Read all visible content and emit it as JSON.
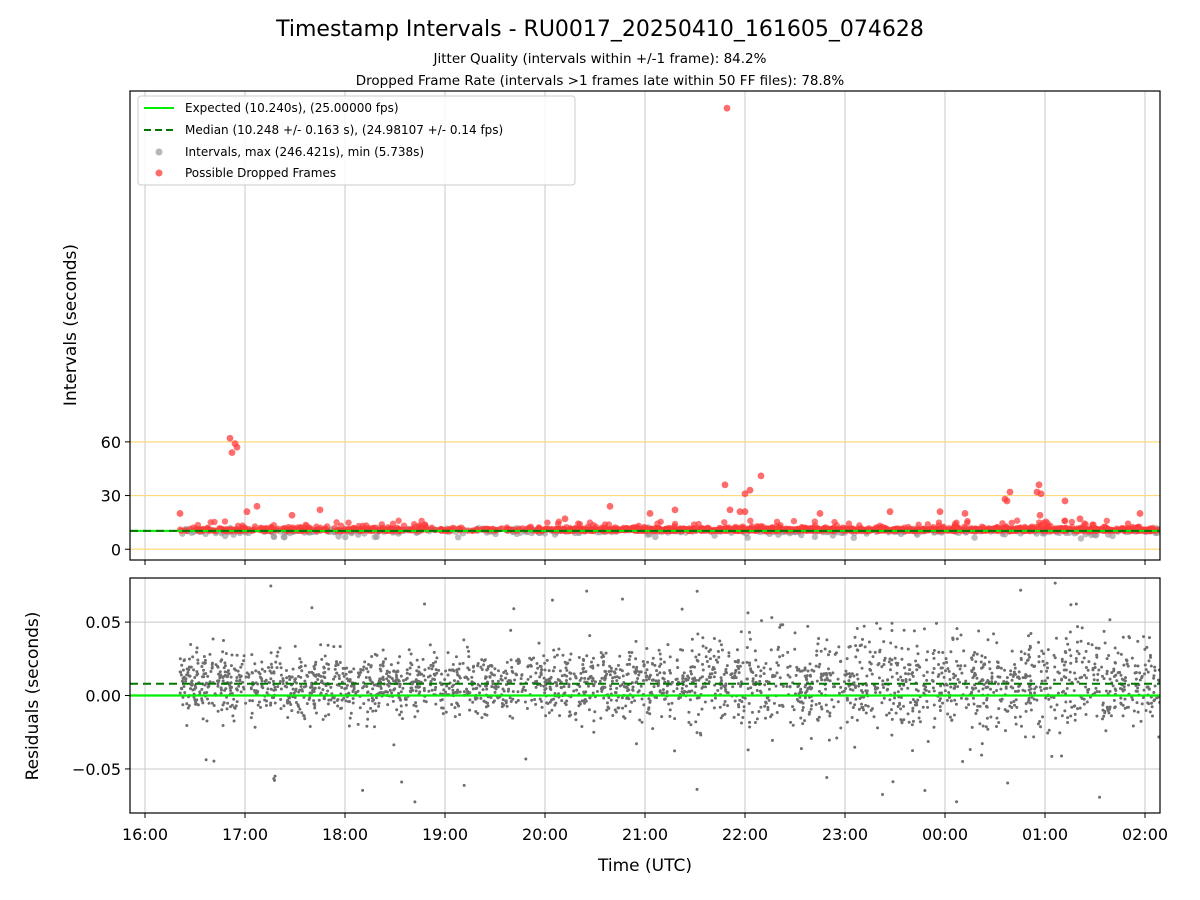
{
  "chart_data": [
    {
      "type": "scatter",
      "title": "Timestamp Intervals - RU0017_20250410_161605_074628",
      "subtitle_lines": [
        "Jitter Quality (intervals within +/-1 frame): 84.2%",
        "Dropped Frame Rate (intervals >1 frames late within 50 FF files): 78.8%"
      ],
      "ylabel": "Intervals (seconds)",
      "ylim": [
        -6,
        256
      ],
      "x_range_hours": [
        15.85,
        26.15
      ],
      "y_ticks": [
        0,
        30,
        60
      ],
      "y_tick_labels": [
        "0",
        "30",
        "60"
      ],
      "reference_lines": [
        0,
        30,
        60
      ],
      "reference_line_color": "#ffd97a",
      "grid": "vertical",
      "legend_position": "top-left",
      "legend": [
        {
          "label": "Expected (10.240s), (25.00000 fps)",
          "style": "solid-line",
          "color": "#00ee00"
        },
        {
          "label": "Median (10.248 +/- 0.163 s), (24.98107 +/- 0.14 fps)",
          "style": "dashed-line",
          "color": "#007700"
        },
        {
          "label": "Intervals, max (246.421s), min (5.738s)",
          "style": "marker",
          "color": "#999999"
        },
        {
          "label": "Possible Dropped Frames",
          "style": "marker",
          "color": "#ff3b3b"
        }
      ],
      "expected_value": 10.24,
      "median_value": 10.248,
      "outlier_points": [
        {
          "x": 16.85,
          "y": 62
        },
        {
          "x": 16.87,
          "y": 54
        },
        {
          "x": 16.9,
          "y": 59
        },
        {
          "x": 16.92,
          "y": 57
        },
        {
          "x": 17.12,
          "y": 24
        },
        {
          "x": 17.02,
          "y": 21
        },
        {
          "x": 17.75,
          "y": 22
        },
        {
          "x": 17.47,
          "y": 19
        },
        {
          "x": 20.65,
          "y": 24
        },
        {
          "x": 20.2,
          "y": 17
        },
        {
          "x": 21.05,
          "y": 20
        },
        {
          "x": 21.3,
          "y": 22
        },
        {
          "x": 21.8,
          "y": 36
        },
        {
          "x": 21.82,
          "y": 246.4
        },
        {
          "x": 22.0,
          "y": 31
        },
        {
          "x": 22.05,
          "y": 33
        },
        {
          "x": 22.16,
          "y": 41
        },
        {
          "x": 21.95,
          "y": 21
        },
        {
          "x": 22.0,
          "y": 21
        },
        {
          "x": 21.85,
          "y": 22
        },
        {
          "x": 22.75,
          "y": 20
        },
        {
          "x": 23.45,
          "y": 21
        },
        {
          "x": 23.95,
          "y": 21
        },
        {
          "x": 24.2,
          "y": 20
        },
        {
          "x": 24.6,
          "y": 28
        },
        {
          "x": 24.62,
          "y": 27
        },
        {
          "x": 24.65,
          "y": 32
        },
        {
          "x": 24.92,
          "y": 32
        },
        {
          "x": 24.94,
          "y": 36
        },
        {
          "x": 24.96,
          "y": 31
        },
        {
          "x": 24.95,
          "y": 19
        },
        {
          "x": 25.2,
          "y": 27
        },
        {
          "x": 25.35,
          "y": 17
        },
        {
          "x": 25.95,
          "y": 20
        },
        {
          "x": 16.35,
          "y": 20
        }
      ],
      "colors": {
        "expected": "#00ee00",
        "median": "#007700",
        "intervals": "#999999",
        "dropped": "#ff3b3b"
      }
    },
    {
      "type": "scatter",
      "xlabel": "Time (UTC)",
      "ylabel": "Residuals (seconds)",
      "ylim": [
        -0.08,
        0.08
      ],
      "x_range_hours": [
        15.85,
        26.15
      ],
      "x_ticks": [
        16,
        17,
        18,
        19,
        20,
        21,
        22,
        23,
        24,
        25,
        26
      ],
      "x_tick_labels": [
        "16:00",
        "17:00",
        "18:00",
        "19:00",
        "20:00",
        "21:00",
        "22:00",
        "23:00",
        "00:00",
        "01:00",
        "02:00"
      ],
      "y_ticks": [
        -0.05,
        0.0,
        0.05
      ],
      "y_tick_labels": [
        "−0.05",
        "0.00",
        "0.05"
      ],
      "grid": "both",
      "expected_residual": 0.0,
      "median_residual": 0.008,
      "colors": {
        "points": "#6e6e6e",
        "expected": "#00ee00",
        "median": "#007700"
      }
    }
  ]
}
